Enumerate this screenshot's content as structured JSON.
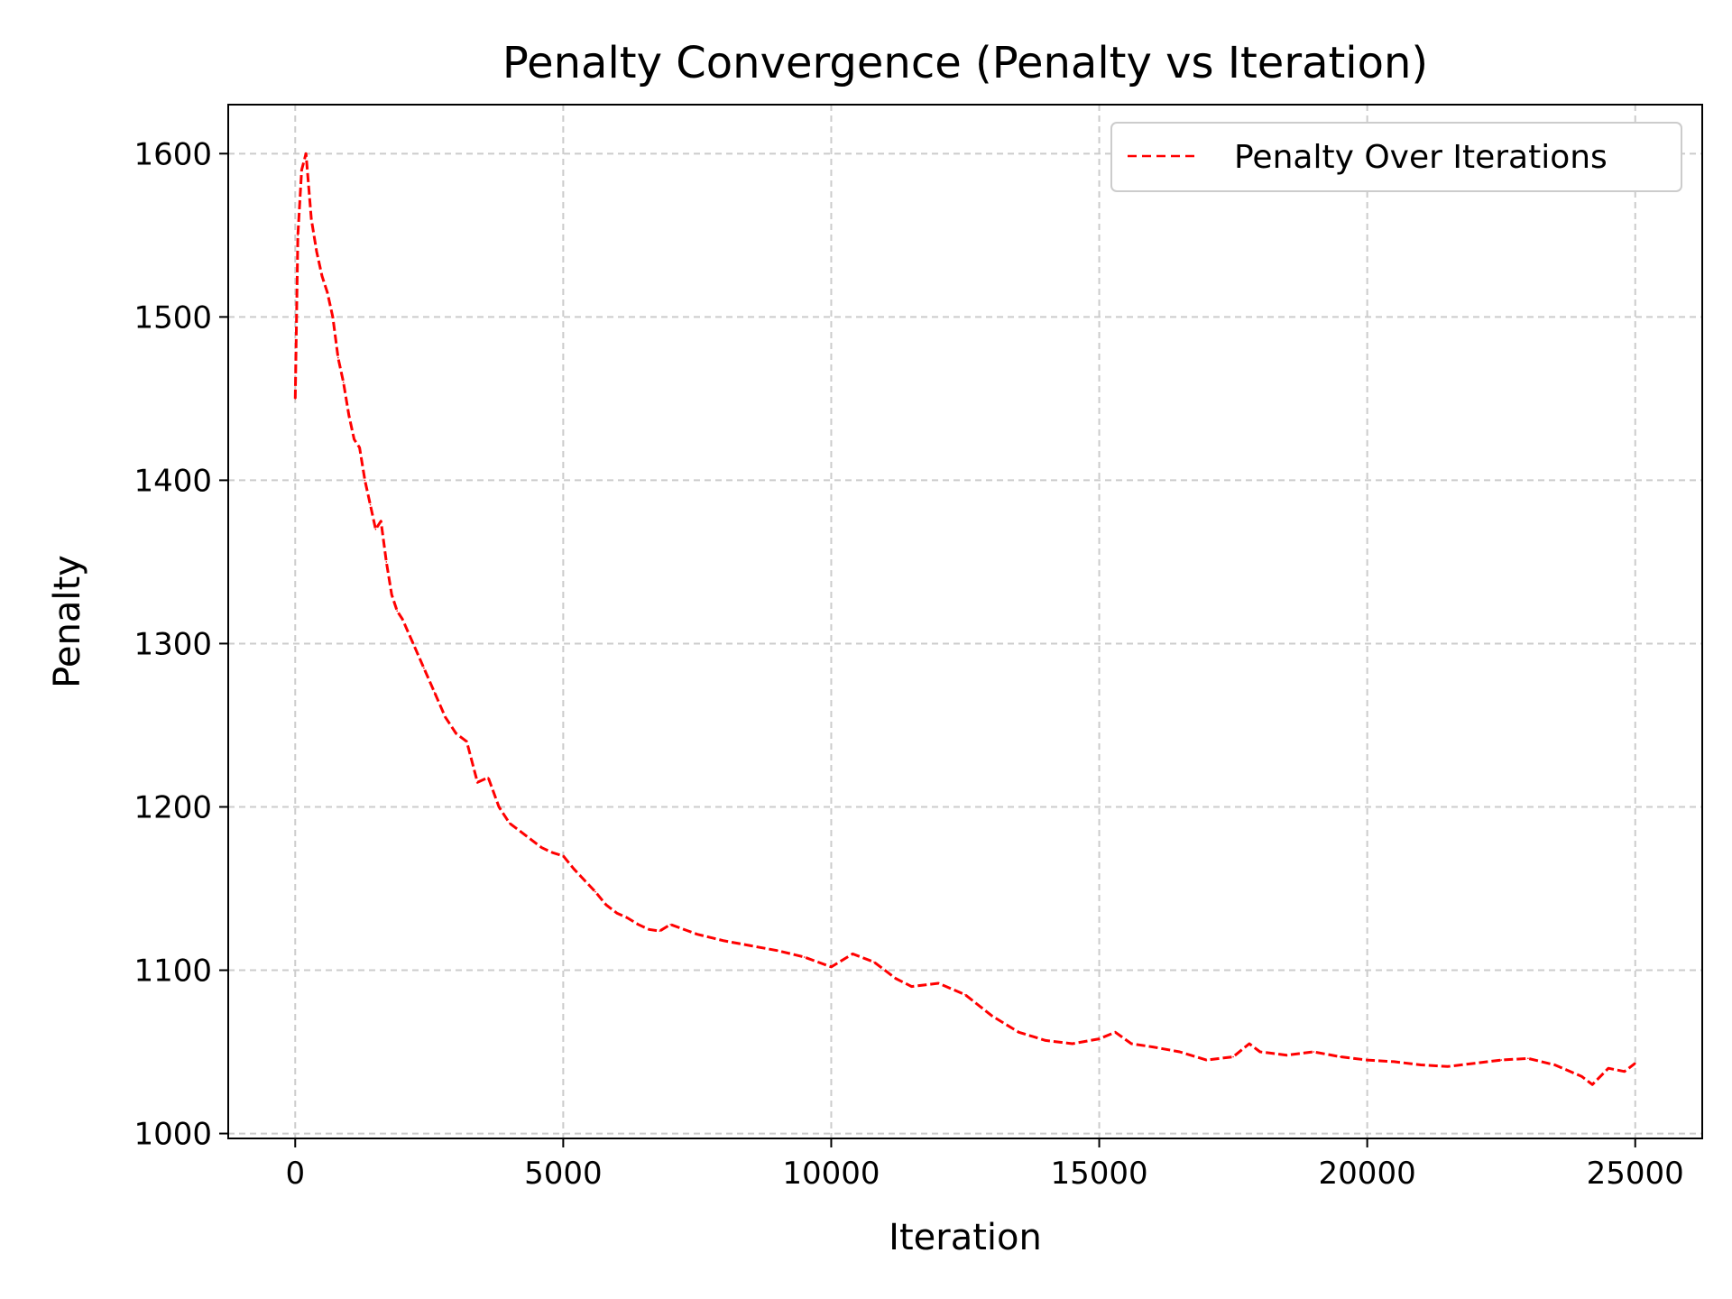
{
  "chart_data": {
    "type": "line",
    "title": "Penalty Convergence (Penalty vs Iteration)",
    "xlabel": "Iteration",
    "ylabel": "Penalty",
    "xlim": [
      -1250,
      26250
    ],
    "ylim": [
      997,
      1630
    ],
    "xticks": [
      0,
      5000,
      10000,
      15000,
      20000,
      25000
    ],
    "yticks": [
      1000,
      1100,
      1200,
      1300,
      1400,
      1500,
      1600
    ],
    "grid": true,
    "legend_position": "top-right",
    "series": [
      {
        "name": "Penalty Over Iterations",
        "color": "#ff0000",
        "line_style": "dashed",
        "x": [
          0,
          50,
          120,
          200,
          300,
          400,
          500,
          600,
          700,
          800,
          900,
          1000,
          1100,
          1200,
          1300,
          1400,
          1500,
          1600,
          1700,
          1800,
          1900,
          2000,
          2200,
          2400,
          2600,
          2800,
          3000,
          3200,
          3400,
          3600,
          3800,
          4000,
          4200,
          4400,
          4600,
          4800,
          5000,
          5200,
          5400,
          5600,
          5800,
          6000,
          6200,
          6400,
          6600,
          6800,
          7000,
          7500,
          8000,
          8500,
          9000,
          9500,
          10000,
          10400,
          10800,
          11200,
          11500,
          12000,
          12500,
          13000,
          13500,
          14000,
          14500,
          15000,
          15300,
          15600,
          16000,
          16500,
          17000,
          17500,
          17800,
          18000,
          18500,
          19000,
          19500,
          20000,
          20500,
          21000,
          21500,
          22000,
          22500,
          23000,
          23500,
          24000,
          24200,
          24500,
          24800,
          25000
        ],
        "y": [
          1450,
          1550,
          1590,
          1600,
          1560,
          1540,
          1525,
          1515,
          1500,
          1475,
          1460,
          1440,
          1425,
          1420,
          1400,
          1385,
          1370,
          1375,
          1350,
          1330,
          1320,
          1315,
          1300,
          1285,
          1270,
          1255,
          1245,
          1240,
          1215,
          1218,
          1200,
          1190,
          1185,
          1180,
          1175,
          1172,
          1170,
          1162,
          1155,
          1148,
          1140,
          1135,
          1132,
          1128,
          1125,
          1124,
          1128,
          1122,
          1118,
          1115,
          1112,
          1108,
          1102,
          1110,
          1105,
          1095,
          1090,
          1092,
          1085,
          1072,
          1062,
          1057,
          1055,
          1058,
          1062,
          1055,
          1053,
          1050,
          1045,
          1047,
          1055,
          1050,
          1048,
          1050,
          1047,
          1045,
          1044,
          1042,
          1041,
          1043,
          1045,
          1046,
          1042,
          1035,
          1030,
          1040,
          1038,
          1043
        ]
      }
    ]
  }
}
